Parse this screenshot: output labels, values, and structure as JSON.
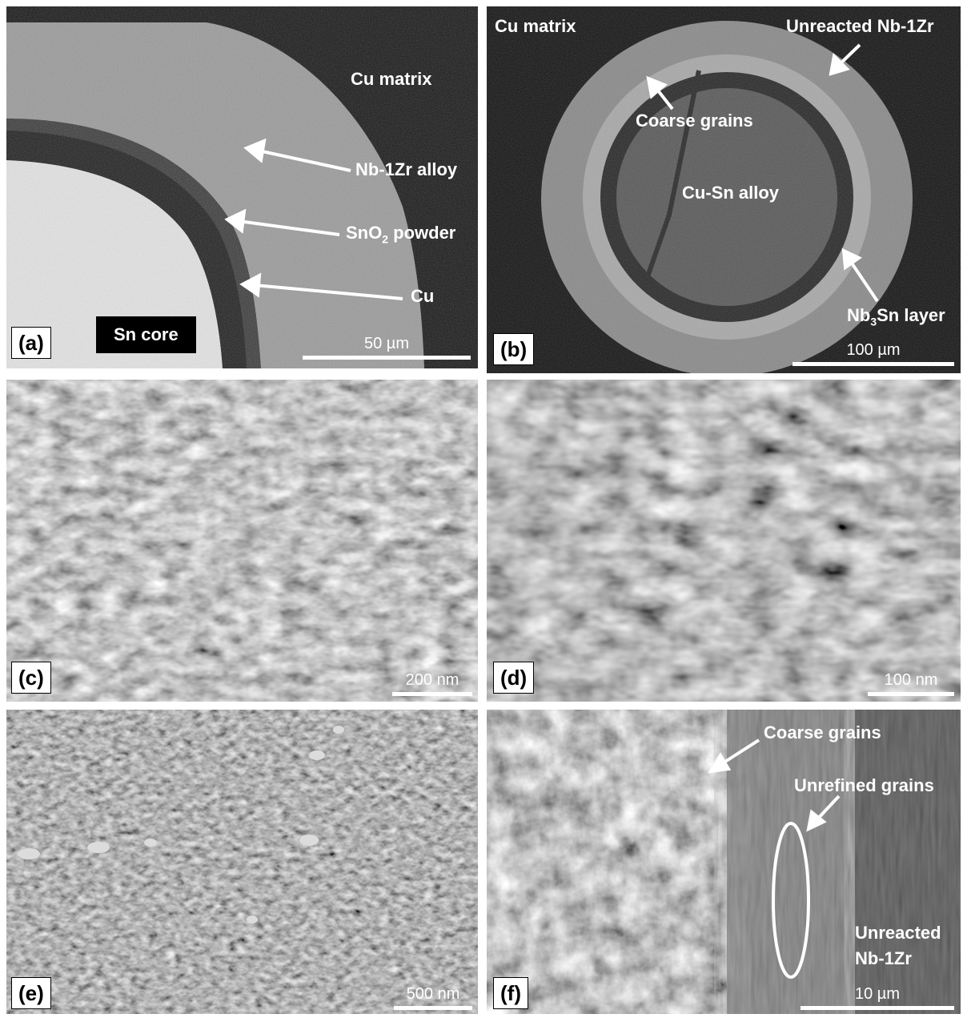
{
  "panels": {
    "a": {
      "id": "(a)",
      "labels": {
        "cu_matrix": "Cu matrix",
        "nb_alloy": "Nb-1Zr alloy",
        "sno2_main": "SnO",
        "sno2_sub": "2",
        "sno2_rest": " powder",
        "cu": "Cu",
        "sn_core": "Sn core"
      },
      "scale": "50 µm"
    },
    "b": {
      "id": "(b)",
      "labels": {
        "cu_matrix": "Cu matrix",
        "unreacted": "Unreacted Nb-1Zr",
        "coarse": "Coarse grains",
        "cusn": "Cu-Sn alloy",
        "nb3sn_a": "Nb",
        "nb3sn_sub": "3",
        "nb3sn_b": "Sn layer"
      },
      "scale": "100 µm"
    },
    "c": {
      "id": "(c)",
      "scale": "200 nm"
    },
    "d": {
      "id": "(d)",
      "scale": "100 nm"
    },
    "e": {
      "id": "(e)",
      "scale": "500 nm"
    },
    "f": {
      "id": "(f)",
      "labels": {
        "coarse": "Coarse grains",
        "unrefined": "Unrefined grains",
        "unreacted_1": "Unreacted",
        "unreacted_2": "Nb-1Zr"
      },
      "scale": "10 µm"
    }
  },
  "colors": {
    "label_text": "#ffffff",
    "arrow": "#ffffff",
    "panel_id_bg": "#ffffff"
  }
}
